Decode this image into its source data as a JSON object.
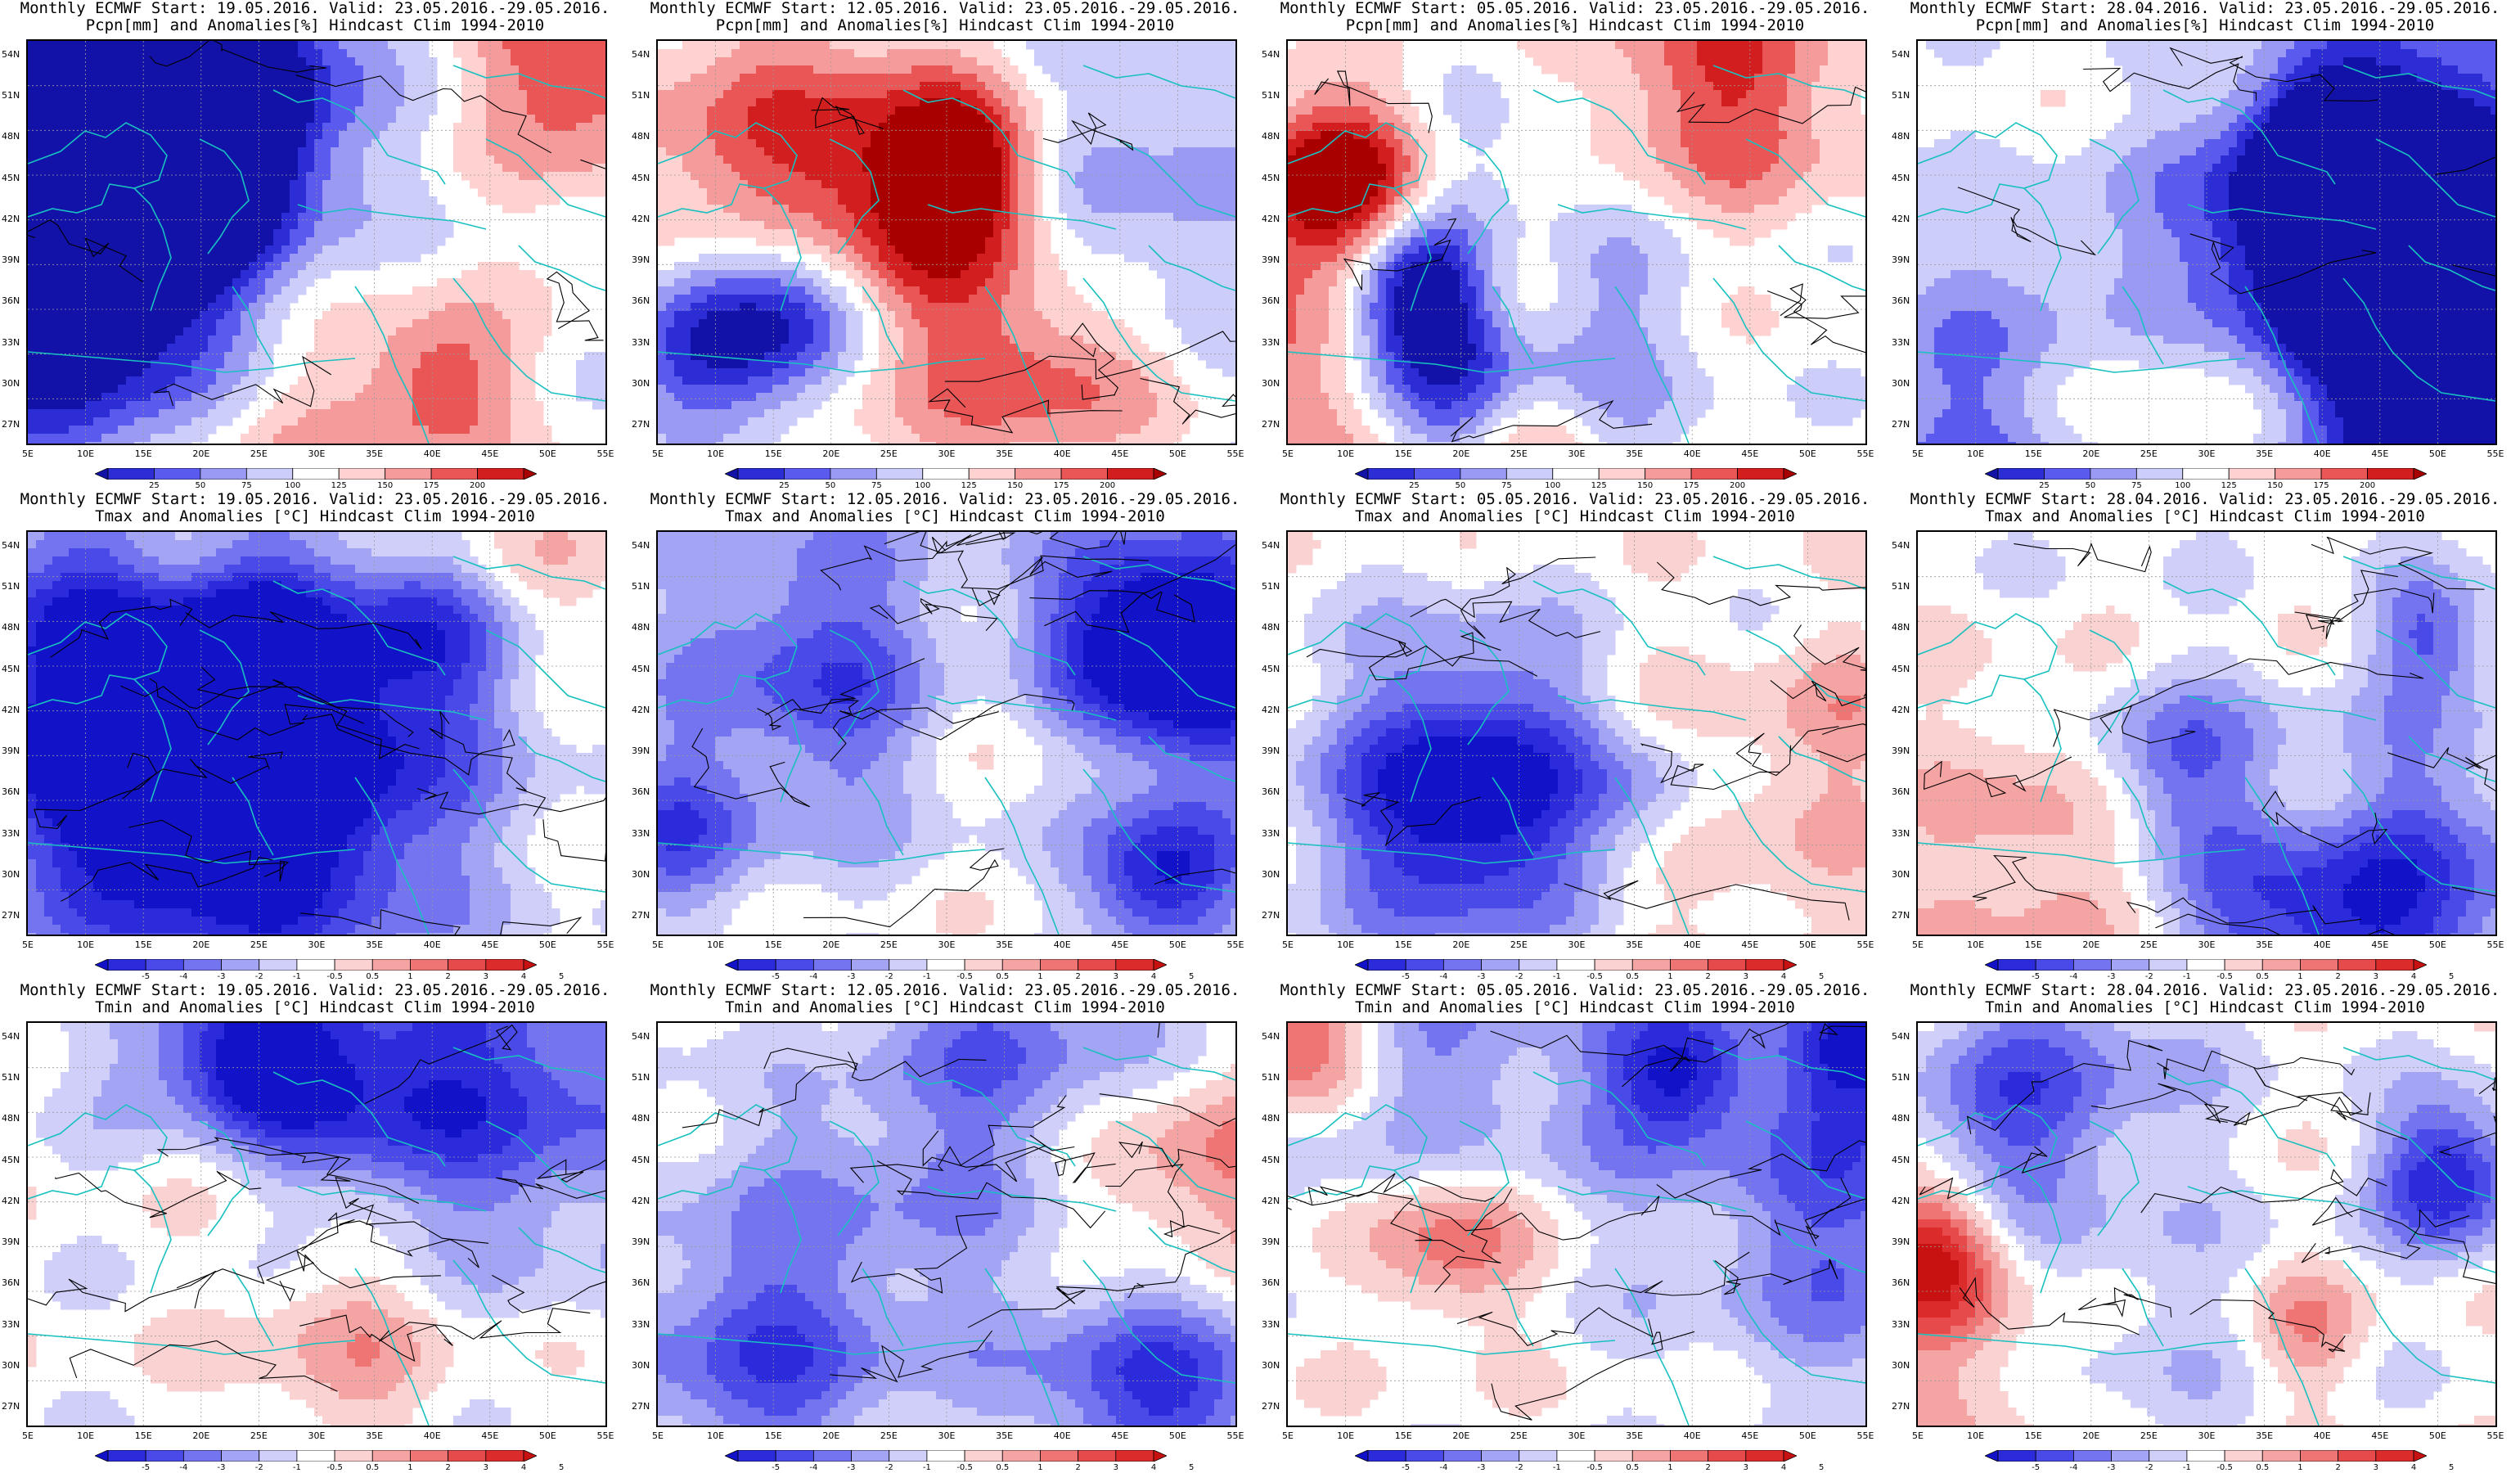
{
  "panels": [
    {
      "line1": "Monthly ECMWF Start: 19.05.2016. Valid: 23.05.2016.-29.05.2016.",
      "line2": "Pcpn[mm] and Anomalies[%] Hindcast Clim 1994-2010",
      "var": "pcpn",
      "seed": 11
    },
    {
      "line1": "Monthly ECMWF Start: 12.05.2016. Valid: 23.05.2016.-29.05.2016.",
      "line2": "Pcpn[mm] and Anomalies[%] Hindcast Clim 1994-2010",
      "var": "pcpn",
      "seed": 23
    },
    {
      "line1": "Monthly ECMWF Start: 05.05.2016. Valid: 23.05.2016.-29.05.2016.",
      "line2": "Pcpn[mm] and Anomalies[%] Hindcast Clim 1994-2010",
      "var": "pcpn",
      "seed": 37
    },
    {
      "line1": "Monthly ECMWF Start: 28.04.2016. Valid: 23.05.2016.-29.05.2016.",
      "line2": "Pcpn[mm] and Anomalies[%] Hindcast Clim 1994-2010",
      "var": "pcpn",
      "seed": 41
    },
    {
      "line1": "Monthly ECMWF Start: 19.05.2016. Valid: 23.05.2016.-29.05.2016.",
      "line2": "Tmax and Anomalies [°C] Hindcast Clim 1994-2010",
      "var": "temp",
      "seed": 53
    },
    {
      "line1": "Monthly ECMWF Start: 12.05.2016. Valid: 23.05.2016.-29.05.2016.",
      "line2": "Tmax and Anomalies [°C] Hindcast Clim 1994-2010",
      "var": "temp",
      "seed": 67
    },
    {
      "line1": "Monthly ECMWF Start: 05.05.2016. Valid: 23.05.2016.-29.05.2016.",
      "line2": "Tmax and Anomalies [°C] Hindcast Clim 1994-2010",
      "var": "temp",
      "seed": 71
    },
    {
      "line1": "Monthly ECMWF Start: 28.04.2016. Valid: 23.05.2016.-29.05.2016.",
      "line2": "Tmax and Anomalies [°C] Hindcast Clim 1994-2010",
      "var": "temp",
      "seed": 83
    },
    {
      "line1": "Monthly ECMWF Start: 19.05.2016. Valid: 23.05.2016.-29.05.2016.",
      "line2": "Tmin and Anomalies [°C] Hindcast Clim 1994-2010",
      "var": "temp",
      "seed": 97
    },
    {
      "line1": "Monthly ECMWF Start: 12.05.2016. Valid: 23.05.2016.-29.05.2016.",
      "line2": "Tmin and Anomalies [°C] Hindcast Clim 1994-2010",
      "var": "temp",
      "seed": 101
    },
    {
      "line1": "Monthly ECMWF Start: 05.05.2016. Valid: 23.05.2016.-29.05.2016.",
      "line2": "Tmin and Anomalies [°C] Hindcast Clim 1994-2010",
      "var": "temp",
      "seed": 113
    },
    {
      "line1": "Monthly ECMWF Start: 28.04.2016. Valid: 23.05.2016.-29.05.2016.",
      "line2": "Tmin and Anomalies [°C] Hindcast Clim 1994-2010",
      "var": "temp",
      "seed": 127
    }
  ],
  "lat_labels": [
    "54N",
    "51N",
    "48N",
    "45N",
    "42N",
    "39N",
    "36N",
    "33N",
    "30N",
    "27N"
  ],
  "lon_labels": [
    "5E",
    "10E",
    "15E",
    "20E",
    "25E",
    "30E",
    "35E",
    "40E",
    "45E",
    "50E",
    "55E"
  ],
  "pcpn_scale": {
    "labels": [
      "25",
      "50",
      "75",
      "100",
      "125",
      "150",
      "175",
      "200"
    ],
    "colors": [
      "#1212a8",
      "#2d2dd6",
      "#5a5aee",
      "#9a9af5",
      "#cdcdfa",
      "#ffffff",
      "#ffd2d2",
      "#f59b9b",
      "#ea5656",
      "#d21e1e",
      "#a80000"
    ]
  },
  "temp_scale": {
    "labels": [
      "-5",
      "-4",
      "-3",
      "-2",
      "-1",
      "-0.5",
      "0.5",
      "1",
      "2",
      "3",
      "4",
      "5"
    ],
    "colors": [
      "#1212c8",
      "#2b2bdc",
      "#4a4ae8",
      "#7474f0",
      "#a4a4f5",
      "#cfcffa",
      "#ffffff",
      "#fad2d2",
      "#f5a4a4",
      "#ef7474",
      "#e64a4a",
      "#dc2b2b",
      "#c81212"
    ]
  },
  "contour_color": "#000000",
  "coast_color": "#19c0c0"
}
